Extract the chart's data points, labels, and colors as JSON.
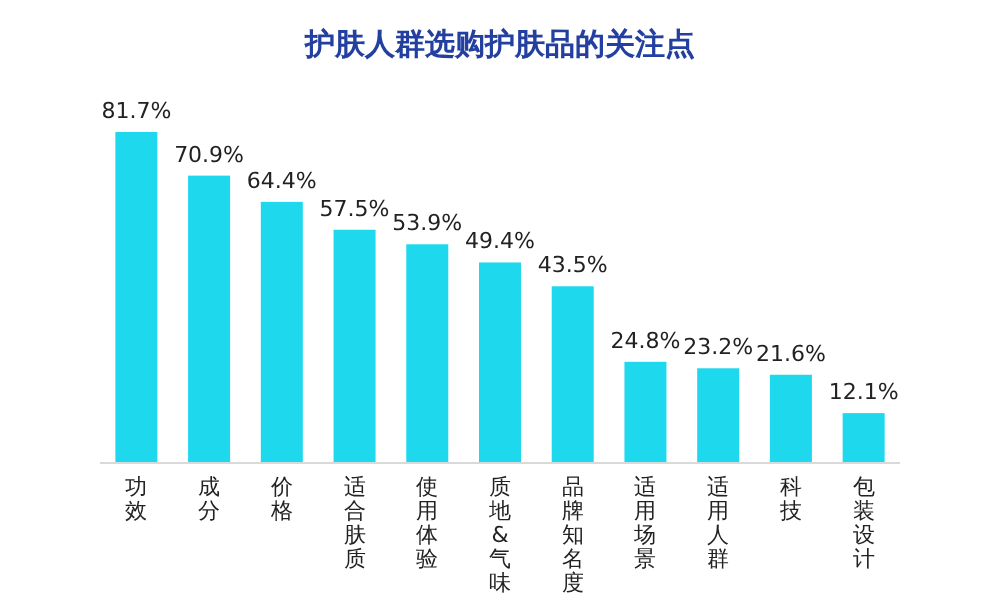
{
  "chart_data": {
    "type": "bar",
    "title": "护肤人群选购护肤品的关注点",
    "categories": [
      "功效",
      "成分",
      "价格",
      "适合肤质",
      "使用体验",
      "质地&气味",
      "品牌知名度",
      "适用场景",
      "适用人群",
      "科技",
      "包装设计"
    ],
    "values": [
      81.7,
      70.9,
      64.4,
      57.5,
      53.9,
      49.4,
      43.5,
      24.8,
      23.2,
      21.6,
      12.1
    ],
    "value_labels": [
      "81.7%",
      "70.9%",
      "64.4%",
      "57.5%",
      "53.9%",
      "49.4%",
      "43.5%",
      "24.8%",
      "23.2%",
      "21.6%",
      "12.1%"
    ],
    "color": "#1ed8ee"
  }
}
